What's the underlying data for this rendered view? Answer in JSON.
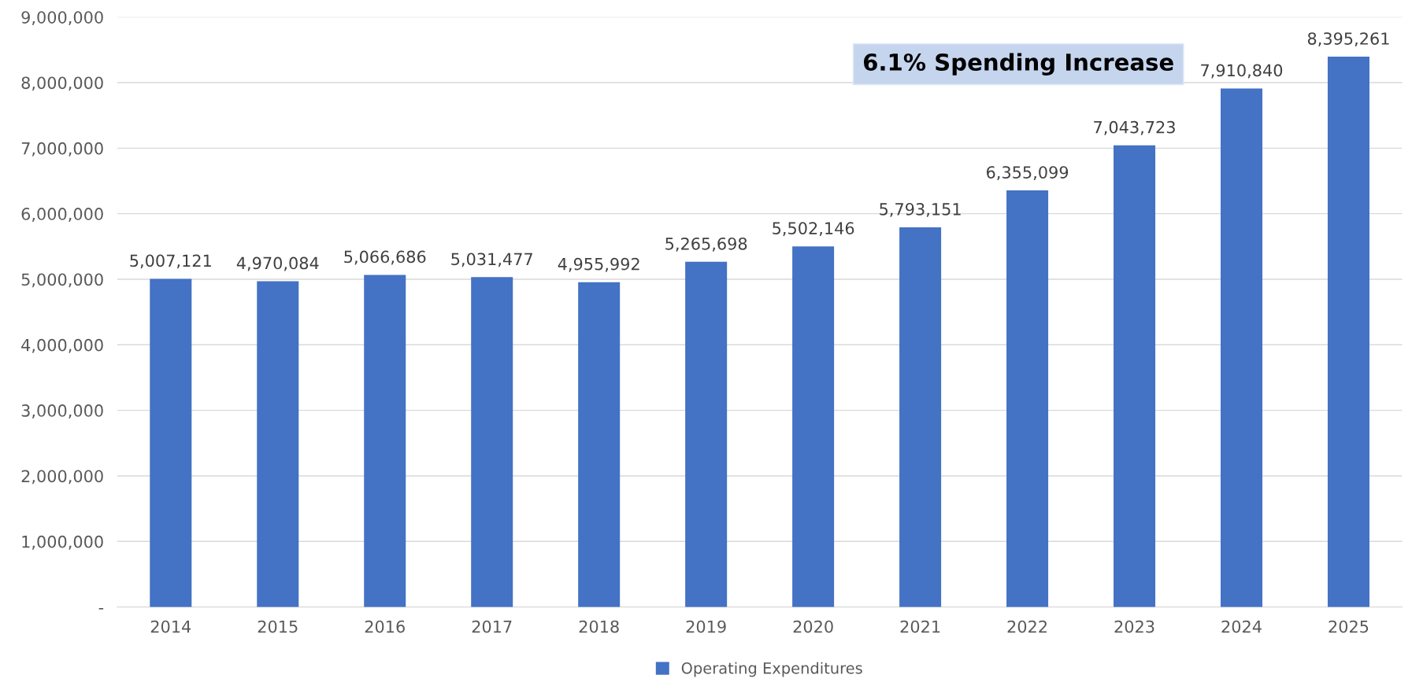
{
  "chart_data": {
    "type": "bar",
    "categories": [
      "2014",
      "2015",
      "2016",
      "2017",
      "2018",
      "2019",
      "2020",
      "2021",
      "2022",
      "2023",
      "2024",
      "2025"
    ],
    "series": [
      {
        "name": "Operating Expenditures",
        "color": "#4472c4",
        "values": [
          5007121,
          4970084,
          5066686,
          5031477,
          4955992,
          5265698,
          5502146,
          5793151,
          6355099,
          7043723,
          7910840,
          8395261
        ],
        "value_labels": [
          "5,007,121",
          "4,970,084",
          "5,066,686",
          "5,031,477",
          "4,955,992",
          "5,265,698",
          "5,502,146",
          "5,793,151",
          "6,355,099",
          "7,043,723",
          "7,910,840",
          "8,395,261"
        ]
      }
    ],
    "ylim": [
      0,
      9000000
    ],
    "yticks": [
      {
        "value": 0,
        "label": "-"
      },
      {
        "value": 1000000,
        "label": "1,000,000"
      },
      {
        "value": 2000000,
        "label": "2,000,000"
      },
      {
        "value": 3000000,
        "label": "3,000,000"
      },
      {
        "value": 4000000,
        "label": "4,000,000"
      },
      {
        "value": 5000000,
        "label": "5,000,000"
      },
      {
        "value": 6000000,
        "label": "6,000,000"
      },
      {
        "value": 7000000,
        "label": "7,000,000"
      },
      {
        "value": 8000000,
        "label": "8,000,000"
      },
      {
        "value": 9000000,
        "label": "9,000,000"
      }
    ],
    "annotations": [
      "6.1% Spending Increase"
    ],
    "grid": "y",
    "legend": "bottom"
  }
}
